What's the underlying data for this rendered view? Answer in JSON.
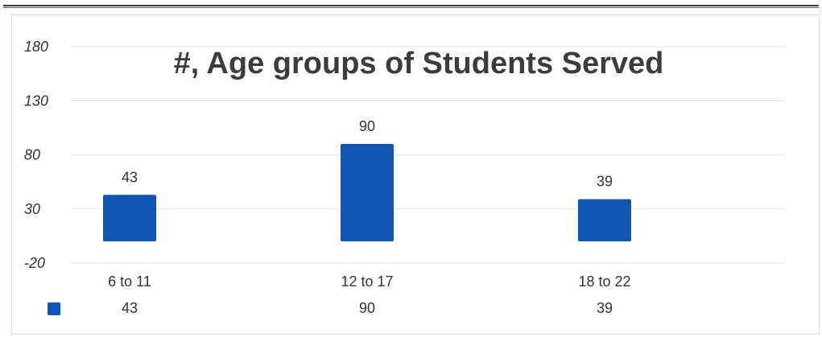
{
  "chart_data": {
    "type": "bar",
    "title": "#, Age groups of Students Served",
    "categories": [
      "6 to 11",
      "12 to 17",
      "18 to 22"
    ],
    "series": [
      {
        "values": [
          43,
          90,
          39
        ],
        "color": "#1155b3"
      }
    ],
    "data_labels": [
      "43",
      "90",
      "39"
    ],
    "yticks": [
      -20,
      30,
      80,
      130,
      180
    ],
    "ytick_labels": [
      "-20",
      "30",
      "80",
      "130",
      "180"
    ],
    "ylim": [
      -20,
      180
    ],
    "xlabel": "",
    "ylabel": "",
    "grid": true,
    "data_table": {
      "values": [
        "43",
        "90",
        "39"
      ],
      "legend_key_color": "#1155b3"
    }
  }
}
